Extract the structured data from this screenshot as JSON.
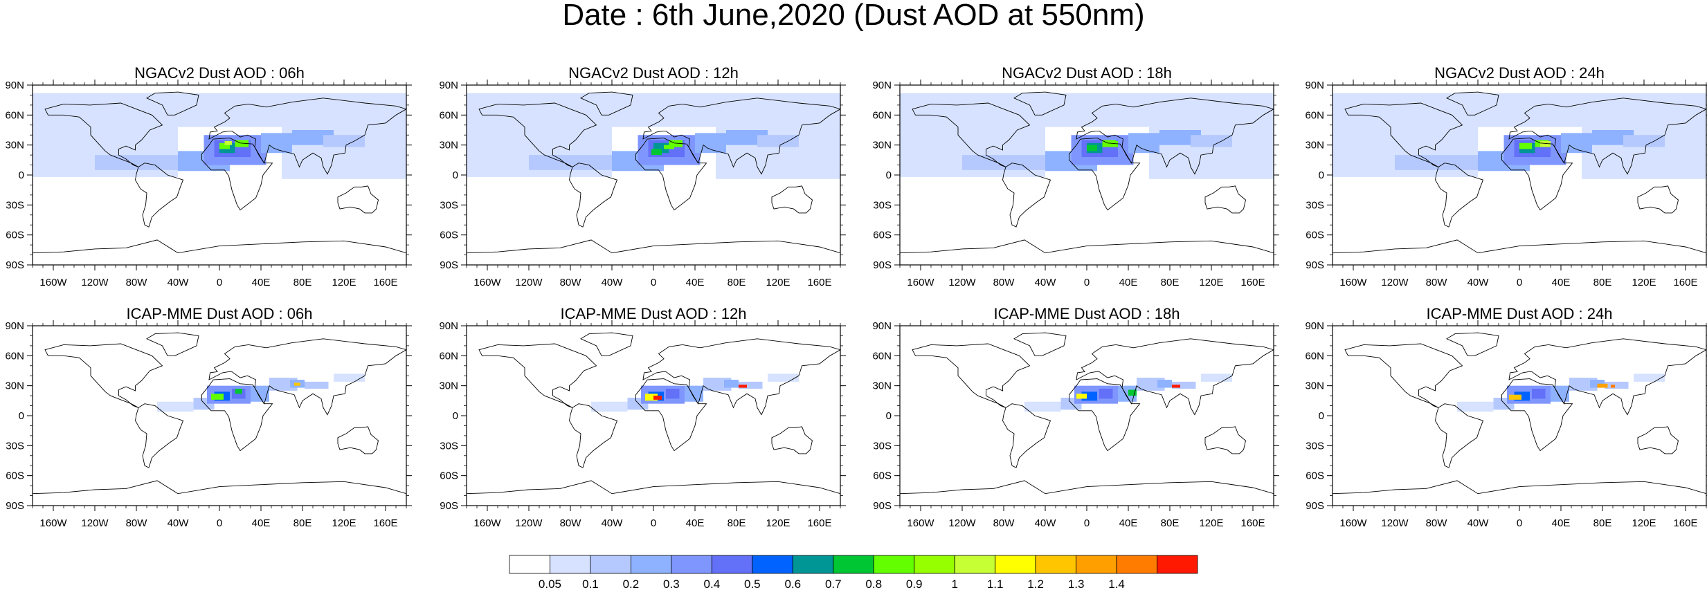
{
  "title": "Date : 6th June,2020 (Dust AOD at 550nm)",
  "panels": [
    {
      "model": "NGACv2",
      "lead": "06h",
      "title": "NGACv2 Dust AOD : 06h"
    },
    {
      "model": "NGACv2",
      "lead": "12h",
      "title": "NGACv2 Dust AOD : 12h"
    },
    {
      "model": "NGACv2",
      "lead": "18h",
      "title": "NGACv2 Dust AOD : 18h"
    },
    {
      "model": "NGACv2",
      "lead": "24h",
      "title": "NGACv2 Dust AOD : 24h"
    },
    {
      "model": "ICAP-MME",
      "lead": "06h",
      "title": "ICAP-MME Dust AOD : 06h"
    },
    {
      "model": "ICAP-MME",
      "lead": "12h",
      "title": "ICAP-MME Dust AOD : 12h"
    },
    {
      "model": "ICAP-MME",
      "lead": "18h",
      "title": "ICAP-MME Dust AOD : 18h"
    },
    {
      "model": "ICAP-MME",
      "lead": "24h",
      "title": "ICAP-MME Dust AOD : 24h"
    }
  ],
  "lat_ticks": [
    "90N",
    "60N",
    "30N",
    "0",
    "30S",
    "60S",
    "90S"
  ],
  "lon_ticks": [
    "160W",
    "120W",
    "80W",
    "40W",
    "0",
    "40E",
    "80E",
    "120E",
    "160E"
  ],
  "colorbar": {
    "labels": [
      "0.05",
      "0.1",
      "0.2",
      "0.3",
      "0.4",
      "0.5",
      "0.6",
      "0.7",
      "0.8",
      "0.9",
      "1",
      "1.1",
      "1.2",
      "1.3",
      "1.4"
    ],
    "colors": [
      "#ffffff",
      "#d6e2ff",
      "#b5c9ff",
      "#8eb2ff",
      "#7f96ff",
      "#6370f8",
      "#0063ff",
      "#009696",
      "#00c633",
      "#63ff00",
      "#96ff00",
      "#c6ff33",
      "#ffff00",
      "#ffc600",
      "#ffa000",
      "#ff7c00",
      "#ff1900"
    ]
  }
}
